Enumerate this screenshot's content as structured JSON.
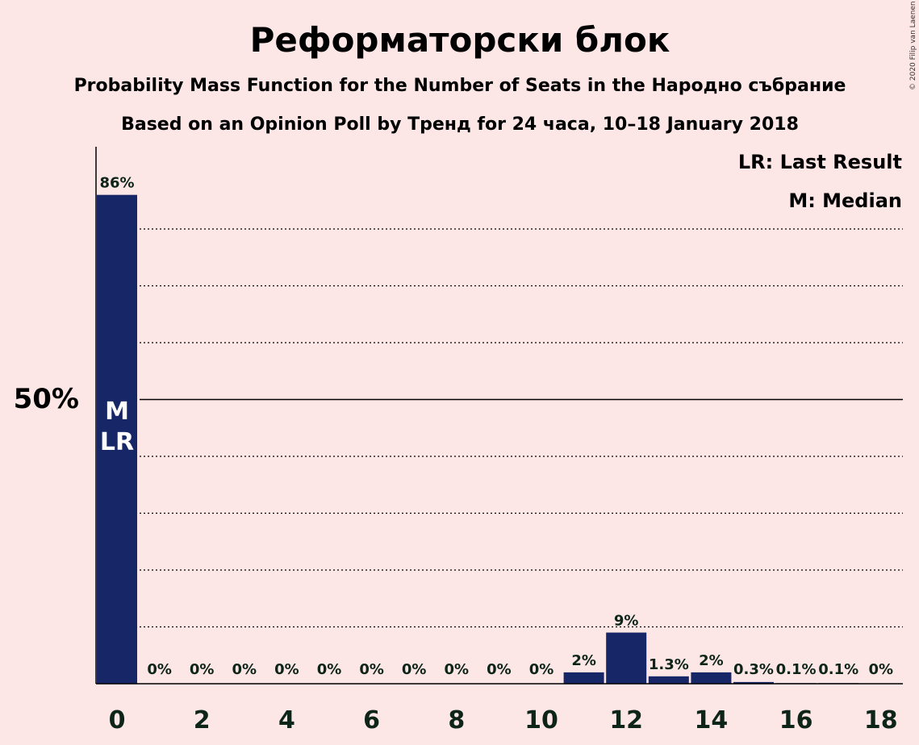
{
  "chart_data": {
    "type": "bar",
    "title": "Реформаторски блок",
    "subtitle_line1": "Probability Mass Function for the Number of Seats in the Народно събрание",
    "subtitle_line2": "Based on an Opinion Poll by Тренд for 24 часа, 10–18 January 2018",
    "legend": [
      "LR: Last Result",
      "M: Median"
    ],
    "credit": "© 2020 Filip van Laenen",
    "x": [
      0,
      1,
      2,
      3,
      4,
      5,
      6,
      7,
      8,
      9,
      10,
      11,
      12,
      13,
      14,
      15,
      16,
      17,
      18
    ],
    "values": [
      86,
      0,
      0,
      0,
      0,
      0,
      0,
      0,
      0,
      0,
      0,
      2,
      9,
      1.3,
      2,
      0.3,
      0.1,
      0.1,
      0
    ],
    "data_labels": [
      "86%",
      "0%",
      "0%",
      "0%",
      "0%",
      "0%",
      "0%",
      "0%",
      "0%",
      "0%",
      "0%",
      "2%",
      "9%",
      "1.3%",
      "2%",
      "0.3%",
      "0.1%",
      "0.1%",
      "0%"
    ],
    "xticks": [
      0,
      2,
      4,
      6,
      8,
      10,
      12,
      14,
      16,
      18
    ],
    "ytick_label": "50%",
    "ylim": [
      0,
      94
    ],
    "gridlines": [
      10,
      20,
      30,
      40,
      60,
      70,
      80
    ],
    "solid_line": 50,
    "bar_marks": [
      {
        "x": 0,
        "lines": [
          "M",
          "LR"
        ]
      }
    ],
    "colors": {
      "bar": "#162666",
      "background": "#fde6e6",
      "text": "#0d2418"
    },
    "legend_position": "top-right",
    "grid": true
  }
}
